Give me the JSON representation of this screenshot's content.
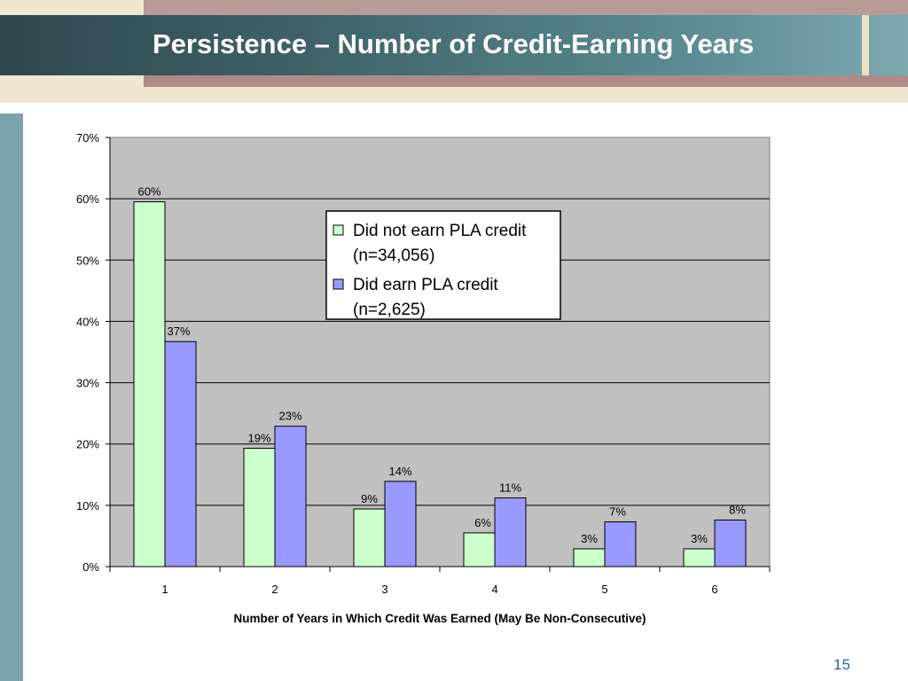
{
  "slide": {
    "title": "Persistence – Number of Credit-Earning Years",
    "page_number": "15"
  },
  "colors": {
    "title_bar": "#3f6369",
    "band": "#f1e6cf",
    "rose": "#b89a96",
    "left_stripe": "#7ba3ab",
    "page_number": "#2f5fa8"
  },
  "chart_data": {
    "type": "bar",
    "title": "",
    "xlabel": "Number of Years in Which Credit Was Earned (May Be Non-Consecutive)",
    "ylabel": "",
    "ylim": [
      0,
      70
    ],
    "yticks": [
      0,
      10,
      20,
      30,
      40,
      50,
      60,
      70
    ],
    "ytick_labels": [
      "0%",
      "10%",
      "20%",
      "30%",
      "40%",
      "50%",
      "60%",
      "70%"
    ],
    "categories": [
      "1",
      "2",
      "3",
      "4",
      "5",
      "6"
    ],
    "grid": true,
    "legend_position": "top-center",
    "plot_background": "#c0c0c0",
    "series": [
      {
        "name": "Did not earn PLA credit (n=34,056)",
        "legend_lines": [
          "Did not earn PLA credit",
          "(n=34,056)"
        ],
        "color": "#ccffcc",
        "values": [
          59.5,
          19.3,
          9.4,
          5.5,
          2.9,
          2.9
        ],
        "labels": [
          "60%",
          "19%",
          "9%",
          "6%",
          "3%",
          "3%"
        ]
      },
      {
        "name": "Did earn PLA credit (n=2,625)",
        "legend_lines": [
          "Did earn PLA credit",
          "(n=2,625)"
        ],
        "color": "#9999ff",
        "values": [
          36.7,
          22.9,
          13.9,
          11.2,
          7.3,
          7.6
        ],
        "labels": [
          "37%",
          "23%",
          "14%",
          "11%",
          "7%",
          "8%"
        ]
      }
    ]
  }
}
